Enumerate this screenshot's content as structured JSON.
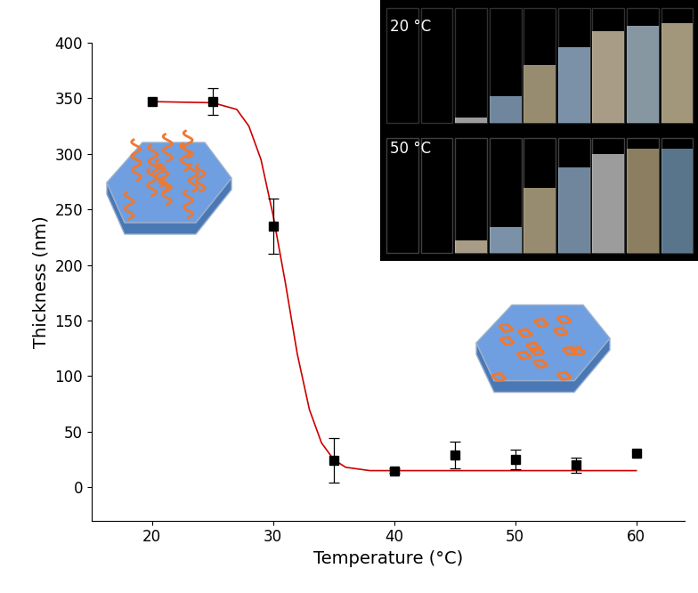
{
  "chart_data": {
    "type": "scatter",
    "x_label": "Temperature (°C)",
    "y_label": "Thickness (nm)",
    "x": [
      20,
      25,
      30,
      35,
      40,
      45,
      50,
      55,
      60
    ],
    "values": [
      347,
      347,
      235,
      24,
      15,
      29,
      25,
      20,
      31
    ],
    "error": [
      null,
      12,
      25,
      20,
      2,
      12,
      9,
      7,
      null
    ],
    "color": "#000000",
    "marker": "square",
    "fit": {
      "type": "line",
      "color": "#cc0000",
      "x": [
        20,
        25,
        27,
        28,
        29,
        30,
        31,
        32,
        33,
        34,
        35,
        36,
        38,
        40,
        60
      ],
      "values": [
        347,
        346,
        340,
        325,
        295,
        245,
        185,
        120,
        70,
        40,
        25,
        18,
        15,
        15,
        15
      ]
    },
    "inset_labels": [
      "20 °C",
      "50 °C"
    ],
    "xlim": [
      15,
      64
    ],
    "xticks": [
      20,
      30,
      40,
      50,
      60
    ],
    "ylim": [
      -30,
      400
    ],
    "yticks": [
      0,
      50,
      100,
      150,
      200,
      250,
      300,
      350,
      400
    ],
    "grid": false
  }
}
